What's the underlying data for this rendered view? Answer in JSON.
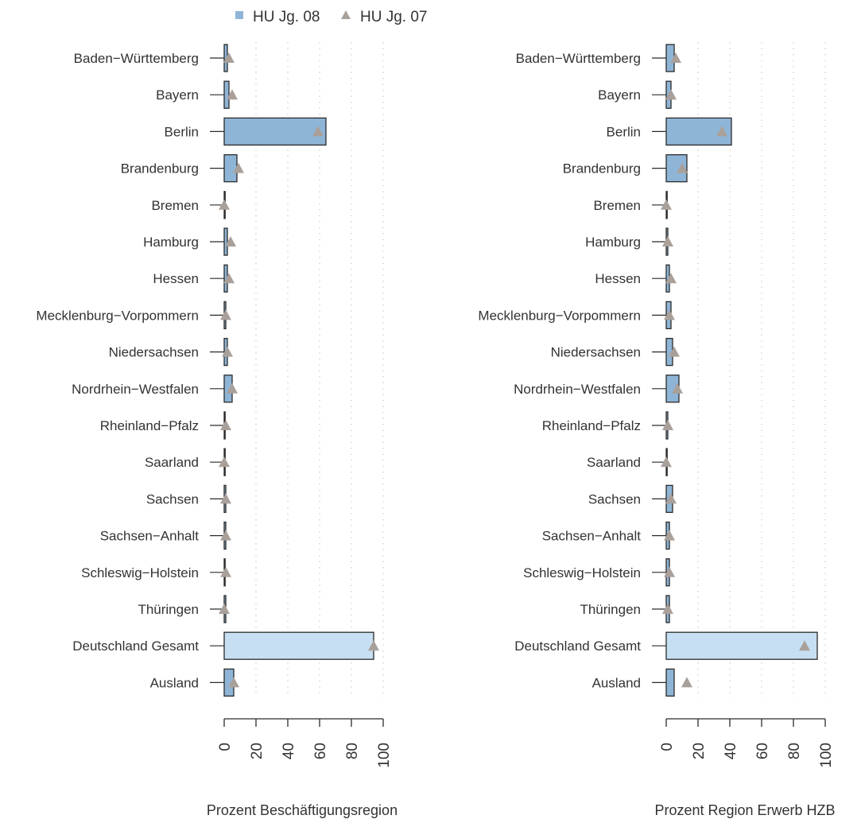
{
  "legend": {
    "items": [
      {
        "label": "HU Jg. 08",
        "marker": "square",
        "color": "#8fb5d6"
      },
      {
        "label": "HU Jg. 07",
        "marker": "triangle",
        "color": "#aaa09a"
      }
    ],
    "placement": "top"
  },
  "colors": {
    "bar": "#8fb5d6",
    "bar_total": "#c6dff2",
    "bar_stroke": "#2b2b2b",
    "triangle": "#aaa09a",
    "grid": "#cfcfcf"
  },
  "chart_data": [
    {
      "type": "bar",
      "orientation": "horizontal",
      "xlabel": "Prozent Beschäftigungsregion",
      "xlim": [
        0,
        100
      ],
      "xticks": [
        "0",
        "20",
        "40",
        "60",
        "80",
        "100"
      ],
      "grid": "vertical dotted",
      "categories": [
        "Baden−Württemberg",
        "Bayern",
        "Berlin",
        "Brandenburg",
        "Bremen",
        "Hamburg",
        "Hessen",
        "Mecklenburg−Vorpommern",
        "Niedersachsen",
        "Nordrhein−Westfalen",
        "Rheinland−Pfalz",
        "Saarland",
        "Sachsen",
        "Sachsen−Anhalt",
        "Schleswig−Holstein",
        "Thüringen",
        "Deutschland Gesamt",
        "Ausland"
      ],
      "series": [
        {
          "name": "HU Jg. 08",
          "marker": "bar",
          "values": [
            2,
            3,
            64,
            8,
            0.5,
            2,
            2,
            1,
            2,
            5,
            0.5,
            0.5,
            1,
            1,
            0.5,
            1,
            94,
            6
          ]
        },
        {
          "name": "HU Jg. 07",
          "marker": "triangle",
          "values": [
            3,
            5,
            59,
            9,
            0,
            4,
            3,
            1,
            2,
            5,
            1,
            0,
            1,
            1,
            1,
            0,
            94,
            6
          ]
        }
      ]
    },
    {
      "type": "bar",
      "orientation": "horizontal",
      "xlabel": "Prozent Region Erwerb HZB",
      "xlim": [
        0,
        100
      ],
      "xticks": [
        "0",
        "20",
        "40",
        "60",
        "80",
        "100"
      ],
      "grid": "vertical dotted",
      "categories": [
        "Baden−Württemberg",
        "Bayern",
        "Berlin",
        "Brandenburg",
        "Bremen",
        "Hamburg",
        "Hessen",
        "Mecklenburg−Vorpommern",
        "Niedersachsen",
        "Nordrhein−Westfalen",
        "Rheinland−Pfalz",
        "Saarland",
        "Sachsen",
        "Sachsen−Anhalt",
        "Schleswig−Holstein",
        "Thüringen",
        "Deutschland Gesamt",
        "Ausland"
      ],
      "series": [
        {
          "name": "HU Jg. 08",
          "marker": "bar",
          "values": [
            5,
            3,
            41,
            13,
            0.5,
            1,
            2,
            3,
            4,
            8,
            1,
            0.5,
            4,
            2,
            2,
            2,
            95,
            5
          ]
        },
        {
          "name": "HU Jg. 07",
          "marker": "triangle",
          "values": [
            6,
            3,
            35,
            10,
            0,
            1,
            3,
            2,
            5,
            7,
            1,
            0,
            3,
            2,
            2,
            1,
            87,
            13
          ]
        }
      ]
    }
  ]
}
